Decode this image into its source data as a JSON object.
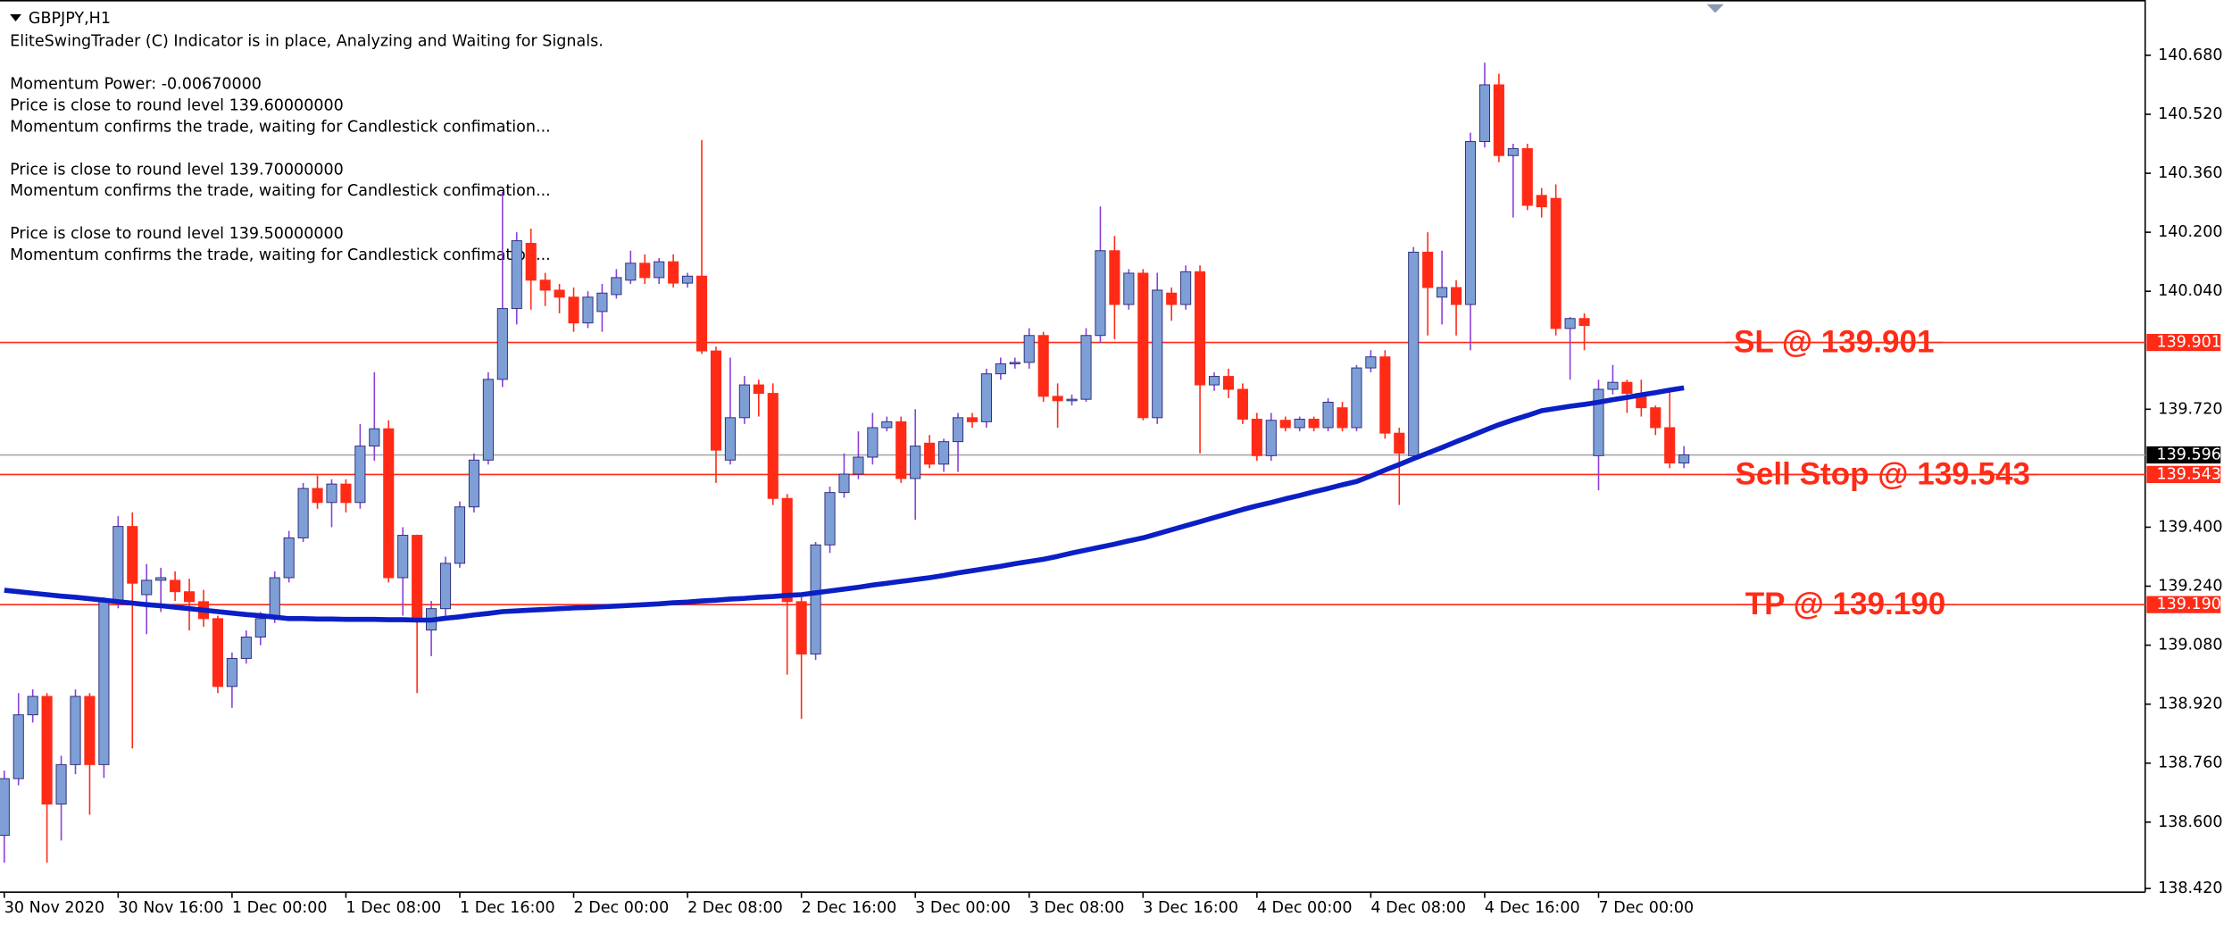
{
  "chart_data": {
    "type": "candlestick",
    "title": "GBPJPY,H1",
    "annotations": [
      "EliteSwingTrader (C) Indicator is in place, Analyzing and Waiting for Signals.",
      "Momentum Power: -0.00670000",
      "Price is close to round level 139.60000000",
      "Momentum confirms the trade, waiting for Candlestick confimation...",
      "Price is close to round level 139.70000000",
      "Momentum confirms the trade, waiting for Candlestick confimation...",
      "Price is close to round level 139.50000000",
      "Momentum confirms the trade, waiting for Candlestick confimation..."
    ],
    "categories": [
      "30 Nov 2020",
      null,
      null,
      null,
      null,
      null,
      null,
      null,
      "30 Nov 16:00",
      null,
      null,
      null,
      null,
      null,
      null,
      null,
      "1 Dec 00:00",
      null,
      null,
      null,
      null,
      null,
      null,
      null,
      "1 Dec 08:00",
      null,
      null,
      null,
      null,
      null,
      null,
      null,
      "1 Dec 16:00",
      null,
      null,
      null,
      null,
      null,
      null,
      null,
      "2 Dec 00:00",
      null,
      null,
      null,
      null,
      null,
      null,
      null,
      "2 Dec 08:00",
      null,
      null,
      null,
      null,
      null,
      null,
      null,
      "2 Dec 16:00",
      null,
      null,
      null,
      null,
      null,
      null,
      null,
      "3 Dec 00:00",
      null,
      null,
      null,
      null,
      null,
      null,
      null,
      "3 Dec 08:00",
      null,
      null,
      null,
      null,
      null,
      null,
      null,
      "3 Dec 16:00",
      null,
      null,
      null,
      null,
      null,
      null,
      null,
      "4 Dec 00:00",
      null,
      null,
      null,
      null,
      null,
      null,
      null,
      "4 Dec 08:00",
      null,
      null,
      null,
      null,
      null,
      null,
      null,
      "4 Dec 16:00",
      null,
      null,
      null,
      null,
      null,
      null,
      null,
      "7 Dec 00:00",
      null,
      null,
      null,
      null,
      null,
      null
    ],
    "candles": {
      "bull_color": "#7e9fd6",
      "bull_border": "#2c2c7a",
      "bull_wick": "#8b3fd9",
      "bear_color": "#ff2b17",
      "open": [
        138.564,
        138.718,
        138.891,
        138.941,
        138.649,
        138.756,
        138.941,
        138.756,
        139.198,
        139.402,
        139.217,
        139.256,
        139.256,
        139.225,
        139.198,
        139.152,
        138.968,
        139.044,
        139.102,
        139.152,
        139.263,
        139.371,
        139.505,
        139.467,
        139.517,
        139.467,
        139.62,
        139.667,
        139.263,
        139.378,
        139.121,
        139.179,
        139.302,
        139.455,
        139.582,
        139.801,
        139.993,
        140.17,
        140.07,
        140.043,
        140.024,
        139.954,
        139.985,
        140.031,
        140.07,
        140.116,
        140.077,
        140.12,
        140.062,
        140.081,
        139.878,
        139.582,
        139.697,
        139.786,
        139.763,
        139.478,
        139.198,
        139.056,
        139.352,
        139.494,
        139.544,
        139.59,
        139.67,
        139.686,
        139.532,
        139.628,
        139.571,
        139.632,
        139.697,
        139.686,
        139.816,
        139.843,
        139.847,
        139.92,
        139.755,
        139.743,
        139.747,
        139.92,
        140.15,
        140.004,
        140.089,
        139.697,
        140.035,
        140.004,
        140.093,
        139.786,
        139.809,
        139.774,
        139.693,
        139.594,
        139.69,
        139.67,
        139.693,
        139.67,
        139.724,
        139.67,
        139.832,
        139.862,
        139.655,
        139.594,
        140.146,
        140.024,
        140.05,
        140.004,
        140.446,
        140.6,
        140.408,
        140.427,
        140.3,
        140.292,
        139.939,
        139.966,
        139.594,
        139.774,
        139.793,
        139.763,
        139.724,
        139.67,
        139.574
      ],
      "high": [
        138.74,
        138.95,
        138.96,
        138.95,
        138.78,
        138.96,
        138.95,
        139.21,
        139.43,
        139.44,
        139.3,
        139.29,
        139.28,
        139.26,
        139.23,
        139.16,
        139.06,
        139.12,
        139.17,
        139.28,
        139.39,
        139.52,
        139.54,
        139.53,
        139.53,
        139.68,
        139.82,
        139.69,
        139.4,
        139.38,
        139.2,
        139.32,
        139.47,
        139.6,
        139.82,
        140.31,
        140.2,
        140.21,
        140.09,
        140.06,
        140.05,
        140.04,
        140.06,
        140.1,
        140.15,
        140.14,
        140.13,
        140.14,
        140.09,
        140.45,
        139.89,
        139.86,
        139.81,
        139.8,
        139.79,
        139.49,
        139.21,
        139.36,
        139.51,
        139.6,
        139.66,
        139.71,
        139.7,
        139.7,
        139.72,
        139.65,
        139.64,
        139.71,
        139.71,
        139.83,
        139.86,
        139.86,
        139.94,
        139.93,
        139.79,
        139.76,
        139.94,
        140.27,
        140.19,
        140.1,
        140.1,
        140.09,
        140.05,
        140.11,
        140.11,
        139.82,
        139.83,
        139.79,
        139.71,
        139.71,
        139.7,
        139.7,
        139.7,
        139.75,
        139.74,
        139.84,
        139.88,
        139.88,
        139.67,
        140.16,
        140.2,
        140.15,
        140.07,
        140.47,
        140.66,
        140.63,
        140.44,
        140.44,
        140.32,
        140.33,
        139.97,
        139.98,
        139.8,
        139.84,
        139.8,
        139.8,
        139.73,
        139.77,
        139.62
      ],
      "low": [
        138.49,
        138.7,
        138.87,
        138.49,
        138.55,
        138.73,
        138.62,
        138.72,
        139.18,
        138.8,
        139.11,
        139.17,
        139.2,
        139.12,
        139.13,
        138.95,
        138.91,
        139.03,
        139.08,
        139.14,
        139.25,
        139.36,
        139.45,
        139.4,
        139.44,
        139.45,
        139.58,
        139.25,
        139.16,
        138.95,
        139.05,
        139.16,
        139.29,
        139.44,
        139.57,
        139.78,
        139.95,
        139.99,
        140.0,
        139.98,
        139.93,
        139.94,
        139.93,
        140.02,
        140.06,
        140.06,
        140.06,
        140.05,
        140.05,
        139.87,
        139.52,
        139.57,
        139.68,
        139.7,
        139.46,
        139.0,
        138.88,
        139.04,
        139.33,
        139.48,
        139.53,
        139.57,
        139.66,
        139.52,
        139.42,
        139.56,
        139.55,
        139.55,
        139.67,
        139.67,
        139.8,
        139.83,
        139.83,
        139.74,
        139.67,
        139.73,
        139.74,
        139.9,
        139.91,
        139.99,
        139.69,
        139.68,
        139.96,
        139.99,
        139.6,
        139.77,
        139.75,
        139.68,
        139.58,
        139.58,
        139.66,
        139.66,
        139.66,
        139.66,
        139.66,
        139.66,
        139.82,
        139.64,
        139.46,
        139.59,
        139.92,
        139.95,
        139.92,
        139.88,
        140.43,
        140.39,
        140.24,
        140.26,
        140.24,
        139.92,
        139.8,
        139.88,
        139.5,
        139.76,
        139.71,
        139.7,
        139.65,
        139.56,
        139.56
      ],
      "close": [
        138.718,
        138.891,
        138.941,
        138.649,
        138.756,
        138.941,
        138.756,
        139.198,
        139.402,
        139.248,
        139.256,
        139.263,
        139.225,
        139.198,
        139.152,
        138.968,
        139.044,
        139.102,
        139.152,
        139.263,
        139.371,
        139.505,
        139.467,
        139.517,
        139.467,
        139.62,
        139.667,
        139.263,
        139.378,
        139.148,
        139.179,
        139.302,
        139.455,
        139.582,
        139.801,
        139.993,
        140.177,
        140.07,
        140.043,
        140.024,
        139.954,
        140.024,
        140.035,
        140.077,
        140.116,
        140.077,
        140.12,
        140.062,
        140.081,
        139.878,
        139.609,
        139.697,
        139.786,
        139.763,
        139.478,
        139.198,
        139.056,
        139.352,
        139.494,
        139.544,
        139.59,
        139.67,
        139.686,
        139.532,
        139.62,
        139.571,
        139.632,
        139.697,
        139.686,
        139.816,
        139.843,
        139.847,
        139.92,
        139.755,
        139.743,
        139.747,
        139.92,
        140.15,
        140.004,
        140.089,
        139.697,
        140.043,
        140.004,
        140.093,
        139.786,
        139.809,
        139.774,
        139.693,
        139.594,
        139.69,
        139.67,
        139.693,
        139.67,
        139.739,
        139.67,
        139.832,
        139.862,
        139.655,
        139.601,
        140.146,
        140.05,
        140.05,
        140.004,
        140.446,
        140.6,
        140.408,
        140.427,
        140.273,
        140.269,
        139.939,
        139.966,
        139.947,
        139.774,
        139.793,
        139.763,
        139.724,
        139.67,
        139.574,
        139.596
      ]
    },
    "ma": {
      "color": "#0a1fc4",
      "values": [
        139.229,
        139.225,
        139.221,
        139.217,
        139.213,
        139.21,
        139.206,
        139.202,
        139.198,
        139.194,
        139.19,
        139.187,
        139.183,
        139.179,
        139.175,
        139.171,
        139.167,
        139.163,
        139.16,
        139.156,
        139.152,
        139.152,
        139.151,
        139.151,
        139.15,
        139.15,
        139.15,
        139.149,
        139.149,
        139.148,
        139.148,
        139.153,
        139.157,
        139.162,
        139.166,
        139.171,
        139.173,
        139.175,
        139.177,
        139.179,
        139.181,
        139.182,
        139.184,
        139.186,
        139.188,
        139.19,
        139.192,
        139.195,
        139.197,
        139.2,
        139.202,
        139.205,
        139.207,
        139.21,
        139.212,
        139.215,
        139.217,
        139.222,
        139.227,
        139.232,
        139.237,
        139.243,
        139.248,
        139.253,
        139.258,
        139.263,
        139.269,
        139.276,
        139.282,
        139.288,
        139.294,
        139.301,
        139.307,
        139.313,
        139.321,
        139.33,
        139.338,
        139.346,
        139.354,
        139.363,
        139.371,
        139.382,
        139.393,
        139.404,
        139.415,
        139.426,
        139.437,
        139.448,
        139.458,
        139.467,
        139.477,
        139.486,
        139.496,
        139.505,
        139.515,
        139.524,
        139.539,
        139.555,
        139.57,
        139.586,
        139.601,
        139.616,
        139.632,
        139.647,
        139.663,
        139.678,
        139.691,
        139.703,
        139.716,
        139.722,
        139.728,
        139.733,
        139.739,
        139.746,
        139.752,
        139.759,
        139.765,
        139.772,
        139.778
      ]
    },
    "levels": [
      {
        "name": "SL @ 139.901",
        "value": 139.901,
        "value_label": "139.901",
        "color": "#ff2b17"
      },
      {
        "name": "Sell Stop @ 139.543",
        "value": 139.543,
        "value_label": "139.543",
        "color": "#ff2b17"
      },
      {
        "name": "TP @ 139.190",
        "value": 139.19,
        "value_label": "139.190",
        "color": "#ff2b17"
      }
    ],
    "current_price": {
      "value": 139.596,
      "value_label": "139.596",
      "color": "#a8a8a8",
      "box": "#000000"
    },
    "ylim": [
      138.41,
      140.83
    ],
    "yticks": [
      {
        "value": 140.68,
        "label": "140.680"
      },
      {
        "value": 140.52,
        "label": "140.520"
      },
      {
        "value": 140.36,
        "label": "140.360"
      },
      {
        "value": 140.2,
        "label": "140.200"
      },
      {
        "value": 140.04,
        "label": "140.040"
      },
      {
        "value": 139.72,
        "label": "139.720"
      },
      {
        "value": 139.4,
        "label": "139.400"
      },
      {
        "value": 139.24,
        "label": "139.240"
      },
      {
        "value": 139.08,
        "label": "139.080"
      },
      {
        "value": 138.92,
        "label": "138.920"
      },
      {
        "value": 138.76,
        "label": "138.760"
      },
      {
        "value": 138.6,
        "label": "138.600"
      },
      {
        "value": 138.42,
        "label": "138.420"
      }
    ]
  }
}
